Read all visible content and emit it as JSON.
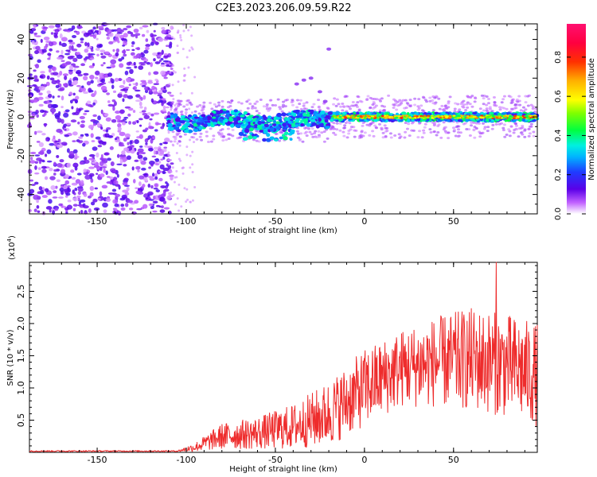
{
  "title": "C2E3.2023.206.09.59.R22",
  "chart_data": [
    {
      "type": "heatmap",
      "name": "spectrogram",
      "xlabel": "Height of straight line (km)",
      "ylabel": "Frequency (Hz)",
      "xlim": [
        -188,
        97
      ],
      "ylim": [
        -50,
        48
      ],
      "x_ticks": [
        -150,
        -100,
        -50,
        0,
        50
      ],
      "y_ticks": [
        -40,
        -20,
        0,
        20,
        40
      ],
      "x_tick_labels": [
        "-150",
        "-100",
        "-50",
        "0",
        "50"
      ],
      "y_tick_labels": [
        "-40",
        "-20",
        "0",
        "20",
        "40"
      ],
      "description_regions": [
        {
          "x_range": [
            -188,
            -110
          ],
          "freq_range": [
            -50,
            48
          ],
          "level": "noise 0.1-0.3"
        },
        {
          "x_range": [
            -110,
            -20
          ],
          "freq_center": -2,
          "freq_width": 6,
          "level": "0.2-0.5"
        },
        {
          "x_range": [
            -20,
            97
          ],
          "freq_center": 0,
          "freq_width": 3,
          "level": "0.5-0.95"
        }
      ],
      "colorbar": {
        "label": "Normalized spectral amplitude",
        "range": [
          0.0,
          0.97
        ],
        "ticks": [
          0.0,
          0.2,
          0.4,
          0.6,
          0.8
        ],
        "tick_labels": [
          "0.0",
          "0.2",
          "0.4",
          "0.6",
          "0.8"
        ]
      }
    },
    {
      "type": "line",
      "name": "snr",
      "xlabel": "Height of straight line (km)",
      "ylabel": "SNR (10 * v/v)",
      "y_multiplier": "(x10",
      "y_multiplier_exp": "4",
      "y_multiplier_close": ")",
      "xlim": [
        -188,
        97
      ],
      "ylim": [
        0,
        29500
      ],
      "x_ticks": [
        -150,
        -100,
        -50,
        0,
        50
      ],
      "y_ticks": [
        5000,
        10000,
        15000,
        20000,
        25000
      ],
      "x_tick_labels": [
        "-150",
        "-100",
        "-50",
        "0",
        "50"
      ],
      "y_tick_labels": [
        "0.5",
        "1.0",
        "1.5",
        "2.0",
        "2.5"
      ],
      "color": "#ee2c2c",
      "envelope": [
        {
          "x": -188,
          "mean": 200,
          "spread": 100
        },
        {
          "x": -105,
          "mean": 200,
          "spread": 100
        },
        {
          "x": -95,
          "mean": 800,
          "spread": 700
        },
        {
          "x": -80,
          "mean": 2500,
          "spread": 2000
        },
        {
          "x": -60,
          "mean": 3000,
          "spread": 2500
        },
        {
          "x": -40,
          "mean": 4000,
          "spread": 3500
        },
        {
          "x": -20,
          "mean": 6000,
          "spread": 5000
        },
        {
          "x": 0,
          "mean": 10000,
          "spread": 6000
        },
        {
          "x": 20,
          "mean": 13000,
          "spread": 6000
        },
        {
          "x": 40,
          "mean": 14000,
          "spread": 7000
        },
        {
          "x": 60,
          "mean": 14500,
          "spread": 8000
        },
        {
          "x": 80,
          "mean": 13500,
          "spread": 8000
        },
        {
          "x": 97,
          "mean": 12000,
          "spread": 8000
        }
      ],
      "peak": {
        "x": 74,
        "y": 29500
      }
    }
  ]
}
